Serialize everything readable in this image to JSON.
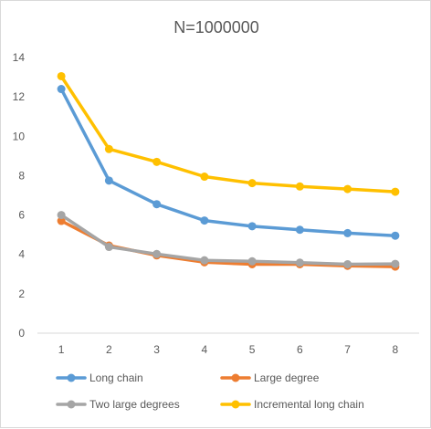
{
  "chart_data": {
    "type": "line",
    "title": "N=1000000",
    "xlabel": "",
    "ylabel": "",
    "x": [
      1,
      2,
      3,
      4,
      5,
      6,
      7,
      8
    ],
    "ylim": [
      0,
      14
    ],
    "yticks": [
      0,
      2,
      4,
      6,
      8,
      10,
      12,
      14
    ],
    "grid": false,
    "legend_position": "bottom",
    "series": [
      {
        "name": "Long chain",
        "color": "#5B9BD5",
        "values": [
          12.4,
          7.75,
          6.55,
          5.72,
          5.43,
          5.25,
          5.08,
          4.95
        ]
      },
      {
        "name": "Large degree",
        "color": "#ED7D31",
        "values": [
          5.7,
          4.45,
          3.95,
          3.6,
          3.5,
          3.5,
          3.42,
          3.38
        ]
      },
      {
        "name": "Two large degrees",
        "color": "#A5A5A5",
        "values": [
          6.0,
          4.38,
          4.02,
          3.7,
          3.65,
          3.58,
          3.5,
          3.52
        ]
      },
      {
        "name": "Incremental long chain",
        "color": "#FFC000",
        "values": [
          13.05,
          9.35,
          8.7,
          7.95,
          7.62,
          7.45,
          7.32,
          7.18
        ]
      }
    ]
  }
}
